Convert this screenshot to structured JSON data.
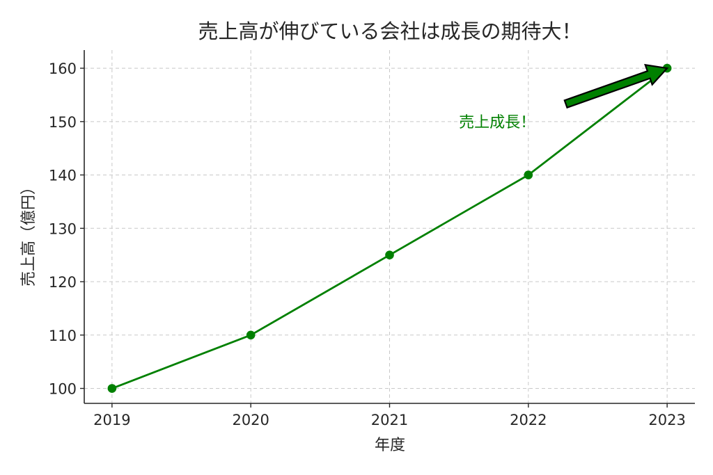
{
  "colors": {
    "series": "#008000",
    "arrow_fill": "#008000",
    "arrow_edge": "#000000"
  },
  "chart_data": {
    "type": "line",
    "title": "売上高が伸びている会社は成長の期待大！",
    "xlabel": "年度",
    "ylabel": "売上高（億円）",
    "x": [
      2019,
      2020,
      2021,
      2022,
      2023
    ],
    "xticks": [
      "2019",
      "2020",
      "2021",
      "2022",
      "2023"
    ],
    "yticks": [
      "100",
      "110",
      "120",
      "130",
      "140",
      "150",
      "160"
    ],
    "ylim": [
      97.2,
      163.4
    ],
    "xlim": [
      2018.8,
      2023.2
    ],
    "grid": true,
    "marker": "circle",
    "series": [
      {
        "values": [
          100,
          110,
          125,
          140,
          160
        ]
      }
    ],
    "annotations": [
      {
        "text": "売上成長！",
        "text_at": [
          2021.5,
          150
        ],
        "arrow_from": [
          2022.27,
          153.3
        ],
        "arrow_to": [
          2023,
          160
        ]
      }
    ]
  }
}
